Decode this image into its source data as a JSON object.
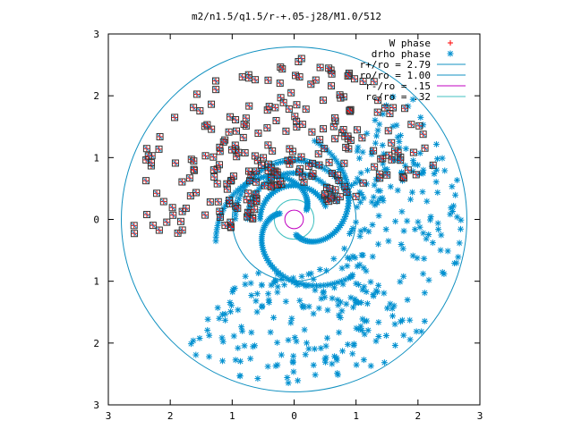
{
  "chart_data": {
    "type": "scatter",
    "title": "m2/n1.5/q1.5/r-+.05-j28/M1.0/512",
    "xlabel": "",
    "ylabel": "",
    "xlim": [
      -3,
      3
    ],
    "ylim": [
      -3,
      3
    ],
    "x_ticks": [
      -3,
      -2,
      -1,
      0,
      1,
      2,
      3
    ],
    "y_ticks": [
      -3,
      -2,
      -1,
      0,
      1,
      2,
      3
    ],
    "x_tick_labels": [
      "3",
      "2",
      "1",
      "0",
      "1",
      "2",
      "3"
    ],
    "y_tick_labels": [
      "3",
      "2",
      "1",
      "0",
      "1",
      "2",
      "3"
    ],
    "legend_position": "top-right",
    "series": [
      {
        "name": "W phase",
        "marker": "plus",
        "color": "#ff0000"
      },
      {
        "name": "drho phase",
        "marker": "asterisk",
        "color": "#0090d0"
      }
    ],
    "circles": [
      {
        "name": "r+/ro = 2.79",
        "radius": 2.79,
        "color": "#1090c0"
      },
      {
        "name": "ro/ro = 1.00",
        "radius": 1.0,
        "color": "#1090c0"
      },
      {
        "name": "r-/ro = .15",
        "radius": 0.15,
        "color": "#c000c0"
      },
      {
        "name": "rc/ro = .32",
        "radius": 0.32,
        "color": "#40c0c0"
      }
    ],
    "outer_box_squares_color": "#000000"
  }
}
